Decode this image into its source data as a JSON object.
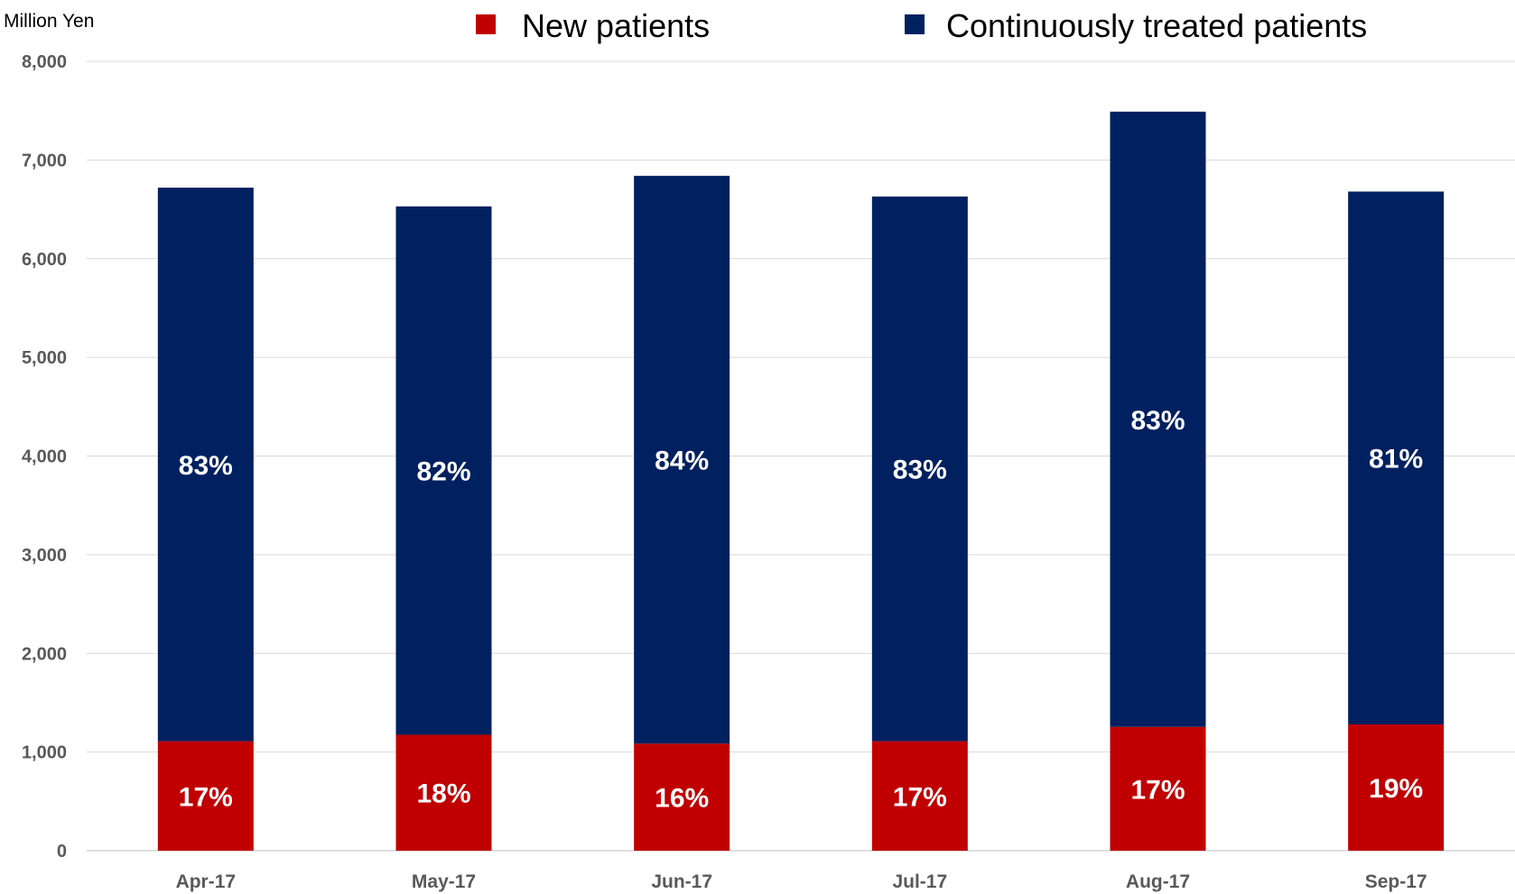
{
  "chart_data": {
    "type": "bar",
    "stacked": true,
    "ylabel": "Million Yen",
    "ylim": [
      0,
      8000
    ],
    "yticks": [
      "0",
      "1,000",
      "2,000",
      "3,000",
      "4,000",
      "5,000",
      "6,000",
      "7,000",
      "8,000"
    ],
    "grid": true,
    "legend_position": "top",
    "categories": [
      "Apr-17",
      "May-17",
      "Jun-17",
      "Jul-17",
      "Aug-17",
      "Sep-17"
    ],
    "series": [
      {
        "name": "New patients",
        "color": "#c00000",
        "values": [
          1110,
          1175,
          1085,
          1110,
          1255,
          1280
        ],
        "labels": [
          "17%",
          "18%",
          "16%",
          "17%",
          "17%",
          "19%"
        ]
      },
      {
        "name": "Continuously treated patients",
        "color": "#002060",
        "values": [
          5610,
          5355,
          5755,
          5520,
          6235,
          5400
        ],
        "labels": [
          "83%",
          "82%",
          "84%",
          "83%",
          "83%",
          "81%"
        ]
      }
    ]
  }
}
